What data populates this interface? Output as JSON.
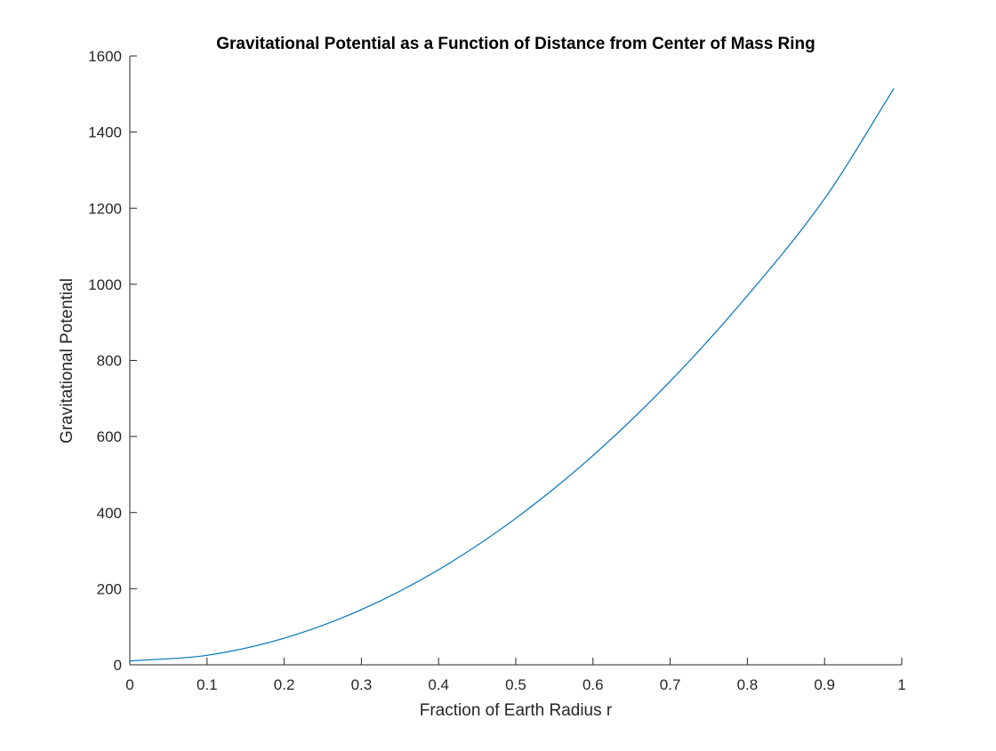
{
  "chart_data": {
    "type": "line",
    "title": "Gravitational Potential as a Function of Distance from Center of Mass Ring",
    "xlabel": "Fraction of Earth Radius r",
    "ylabel": "Gravitational Potential",
    "xlim": [
      0,
      1
    ],
    "ylim": [
      0,
      1600
    ],
    "x_ticks": [
      "0",
      "0.1",
      "0.2",
      "0.3",
      "0.4",
      "0.5",
      "0.6",
      "0.7",
      "0.8",
      "0.9",
      "1"
    ],
    "y_ticks": [
      "0",
      "200",
      "400",
      "600",
      "800",
      "1000",
      "1200",
      "1400",
      "1600"
    ],
    "grid": false,
    "box": false,
    "series": [
      {
        "color": "#0072BD",
        "x": [
          0,
          0.1,
          0.2,
          0.3,
          0.4,
          0.5,
          0.6,
          0.7,
          0.8,
          0.9,
          0.99
        ],
        "y": [
          10,
          25,
          70,
          145,
          250,
          385,
          550,
          745,
          970,
          1225,
          1515
        ]
      }
    ]
  }
}
